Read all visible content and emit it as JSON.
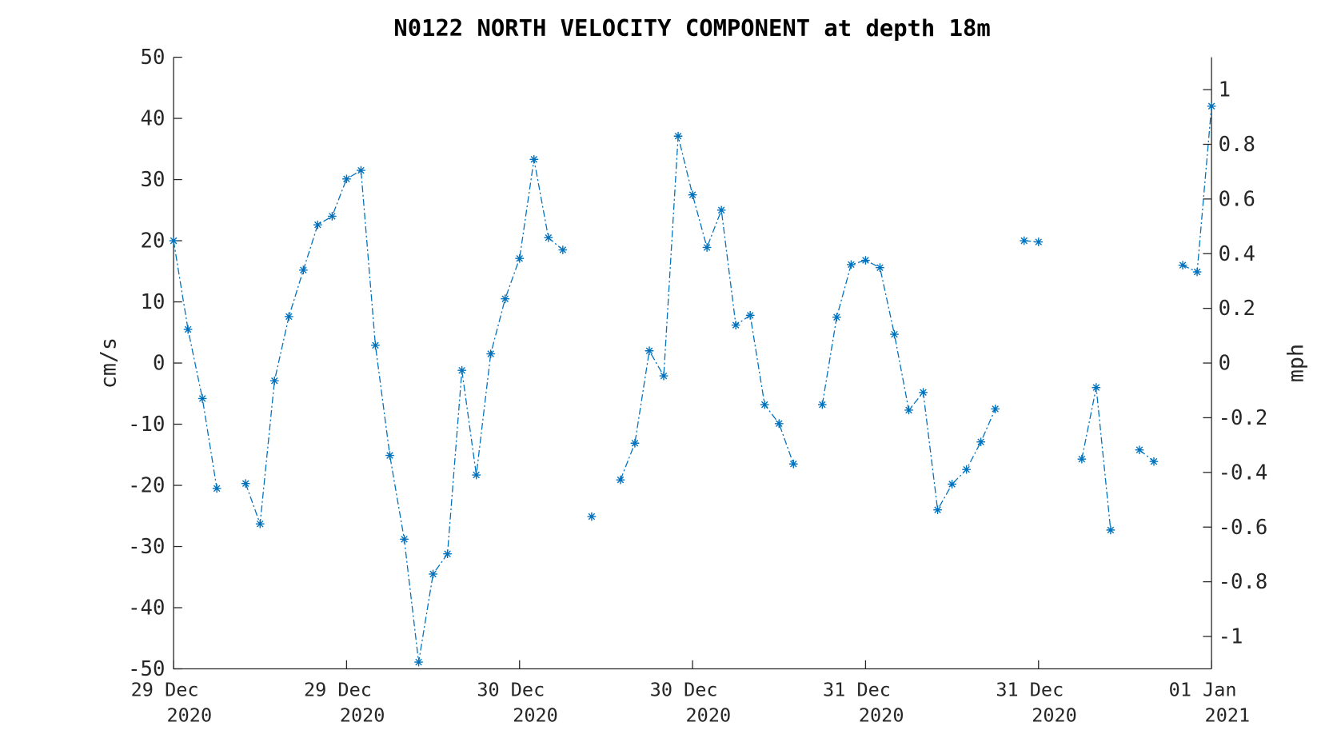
{
  "chart_data": {
    "type": "line",
    "title": "N0122 NORTH VELOCITY COMPONENT at depth 18m",
    "ylabel": "cm/s",
    "y2label": "mph",
    "x": [
      0,
      1,
      2,
      3,
      4,
      5,
      6,
      7,
      8,
      9,
      10,
      11,
      12,
      13,
      14,
      15,
      16,
      17,
      18,
      19,
      20,
      21,
      22,
      23,
      24,
      25,
      26,
      27,
      28,
      29,
      30,
      31,
      32,
      33,
      34,
      35,
      36,
      37,
      38,
      39,
      40,
      41,
      42,
      43,
      44,
      45,
      46,
      47,
      48,
      49,
      50,
      51,
      52,
      53,
      54,
      55,
      56,
      57,
      58,
      59,
      60,
      61,
      62,
      63,
      64,
      65,
      66,
      67,
      68,
      69,
      70,
      71,
      72
    ],
    "series": [
      {
        "name": "North velocity",
        "color": "#0072bd",
        "values": [
          20,
          5.5,
          -5.8,
          -20.5,
          null,
          -19.7,
          -26.3,
          -2.9,
          7.6,
          15.2,
          22.6,
          24,
          30.1,
          31.5,
          2.9,
          -15.1,
          -28.8,
          -48.9,
          -34.5,
          -31.2,
          -1.2,
          -18.3,
          1.5,
          10.5,
          17.1,
          33.3,
          20.5,
          18.5,
          null,
          -25.1,
          null,
          -19.1,
          -13.1,
          2,
          -2.1,
          37.1,
          27.5,
          18.9,
          25,
          6.2,
          7.8,
          -6.8,
          -9.9,
          -16.5,
          null,
          -6.8,
          7.5,
          16.1,
          16.8,
          15.6,
          4.7,
          -7.7,
          -4.8,
          -24,
          -19.8,
          -17.4,
          -12.9,
          -7.5,
          null,
          20,
          19.8,
          null,
          null,
          -15.7,
          -4,
          -27.3,
          null,
          -14.2,
          -16.1,
          null,
          16,
          14.9,
          42
        ]
      }
    ],
    "xlim": [
      0,
      72
    ],
    "xticks": [
      {
        "value": 0,
        "label": "29 Dec\n2020"
      },
      {
        "value": 12,
        "label": "29 Dec\n2020"
      },
      {
        "value": 24,
        "label": "30 Dec\n2020"
      },
      {
        "value": 36,
        "label": "30 Dec\n2020"
      },
      {
        "value": 48,
        "label": "31 Dec\n2020"
      },
      {
        "value": 60,
        "label": "31 Dec\n2020"
      },
      {
        "value": 72,
        "label": "01 Jan\n2021"
      }
    ],
    "ylim": [
      -50,
      50
    ],
    "yticks": [
      -50,
      -40,
      -30,
      -20,
      -10,
      0,
      10,
      20,
      30,
      40,
      50
    ],
    "y2lim": [
      -1.1185,
      1.1185
    ],
    "y2ticks": [
      -1,
      -0.8,
      -0.6,
      -0.4,
      -0.2,
      0,
      0.2,
      0.4,
      0.6,
      0.8,
      1
    ],
    "grid": false
  }
}
